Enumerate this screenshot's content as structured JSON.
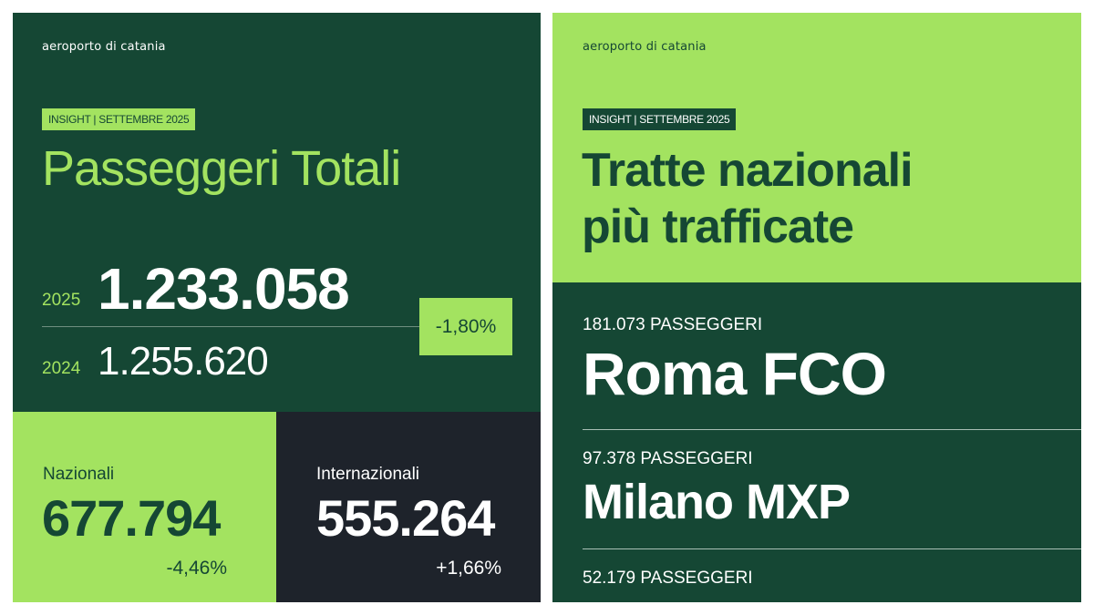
{
  "colors": {
    "dark_green": "#154734",
    "lime": "#a3e360",
    "navy": "#1e232b",
    "white": "#ffffff"
  },
  "left": {
    "brand": "aeroporto di catania",
    "tag": "INSIGHT | SETTEMBRE 2025",
    "title": "Passeggeri Totali",
    "year_current": "2025",
    "value_current": "1.233.058",
    "year_previous": "2024",
    "value_previous": "1.255.620",
    "change": "-1,80%",
    "national": {
      "label": "Nazionali",
      "value": "677.794",
      "change": "-4,46%"
    },
    "international": {
      "label": "Internazionali",
      "value": "555.264",
      "change": "+1,66%"
    }
  },
  "right": {
    "brand": "aeroporto di catania",
    "tag": "INSIGHT | SETTEMBRE 2025",
    "title_line1": "Tratte nazionali",
    "title_line2": "più trafficate",
    "routes": [
      {
        "passengers": "181.073 PASSEGGERI",
        "name": "Roma FCO"
      },
      {
        "passengers": "97.378 PASSEGGERI",
        "name": "Milano MXP"
      },
      {
        "passengers": "52.179 PASSEGGERI"
      }
    ]
  }
}
